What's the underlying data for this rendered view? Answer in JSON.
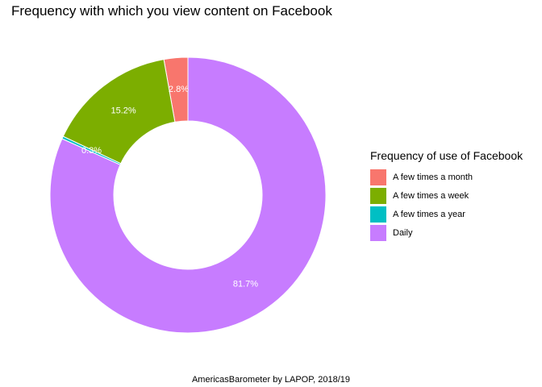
{
  "chart_data": {
    "type": "pie",
    "style": "donut",
    "title": "Frequency with which you view content on Facebook",
    "caption": "AmericasBarometer by LAPOP, 2018/19",
    "legend_title": "Frequency of use of Facebook",
    "legend_position": "right",
    "slices": [
      {
        "name": "A few times a month",
        "value": 2.8,
        "label": "2.8%",
        "color": "#F8766D"
      },
      {
        "name": "A few times a week",
        "value": 15.2,
        "label": "15.2%",
        "color": "#7CAE00"
      },
      {
        "name": "A few times a year",
        "value": 0.3,
        "label": "0.3%",
        "color": "#00BFC4"
      },
      {
        "name": "Daily",
        "value": 81.7,
        "label": "81.7%",
        "color": "#C77CFF"
      }
    ]
  }
}
